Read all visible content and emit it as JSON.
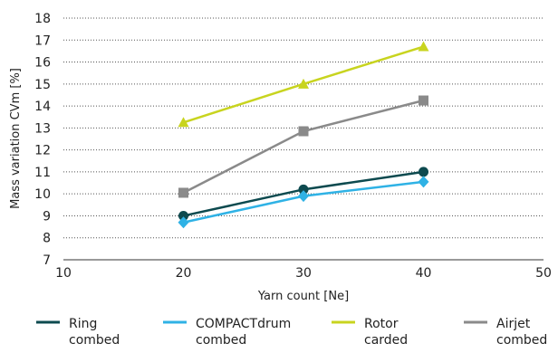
{
  "chart_data": {
    "type": "line",
    "xlabel": "Yarn count [Ne]",
    "ylabel": "Mass variation CVm [%]",
    "xlim": [
      10,
      50
    ],
    "ylim": [
      7,
      18
    ],
    "x_ticks": [
      10,
      20,
      30,
      40,
      50
    ],
    "y_ticks": [
      7,
      8,
      9,
      10,
      11,
      12,
      13,
      14,
      15,
      16,
      17,
      18
    ],
    "grid": "horizontal dotted",
    "legend_position": "bottom",
    "x": [
      20,
      30,
      40
    ],
    "series": [
      {
        "name": [
          "Ring",
          "combed"
        ],
        "color": "#0d4a4f",
        "marker": "circle",
        "values": [
          9.0,
          10.2,
          11.0
        ]
      },
      {
        "name": [
          "COMPACTdrum",
          "combed"
        ],
        "color": "#2fb2e5",
        "marker": "diamond",
        "values": [
          8.7,
          9.9,
          10.55
        ]
      },
      {
        "name": [
          "Rotor",
          "carded"
        ],
        "color": "#c8d41f",
        "marker": "triangle",
        "values": [
          13.25,
          15.0,
          16.7
        ]
      },
      {
        "name": [
          "Airjet",
          "combed"
        ],
        "color": "#8a8a8a",
        "marker": "square",
        "values": [
          10.05,
          12.85,
          14.25
        ]
      }
    ]
  }
}
